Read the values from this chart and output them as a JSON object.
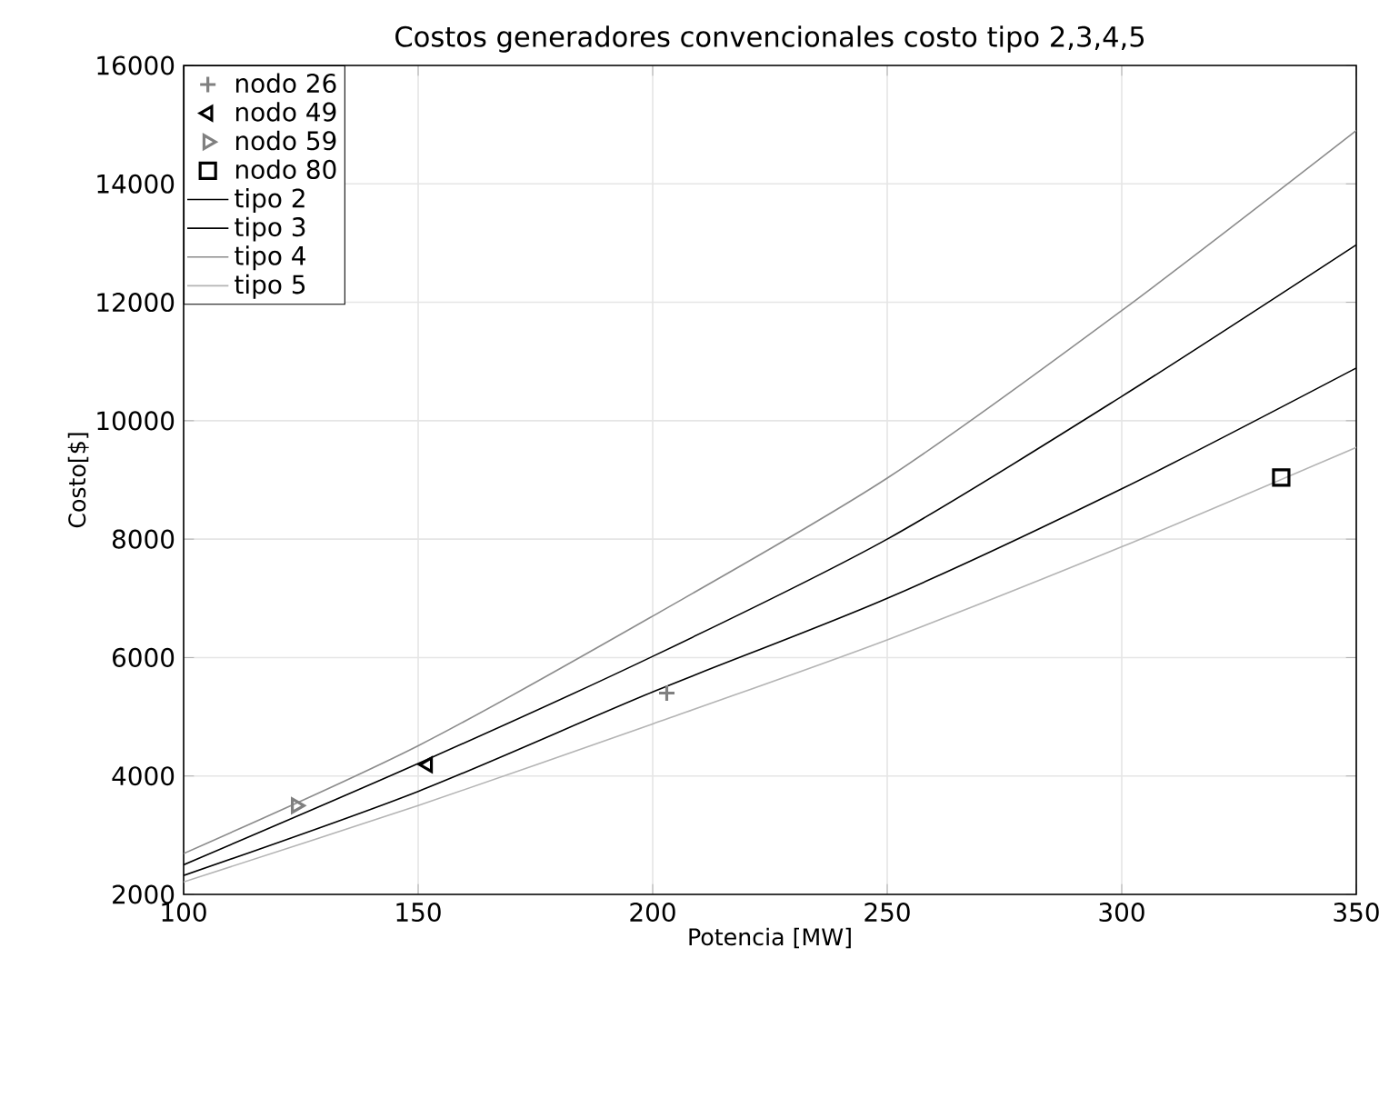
{
  "chart_data": {
    "type": "line",
    "title": "Costos generadores convencionales costo tipo 2,3,4,5",
    "xlabel": "Potencia [MW]",
    "ylabel": "Costo[$]",
    "xlim": [
      100,
      350
    ],
    "ylim": [
      2000,
      16000
    ],
    "xticks": [
      100,
      150,
      200,
      250,
      300,
      350
    ],
    "yticks": [
      2000,
      4000,
      6000,
      8000,
      10000,
      12000,
      14000,
      16000
    ],
    "grid": true,
    "legend": "top left",
    "series": [
      {
        "name": "nodo 26",
        "type": "scatter",
        "marker": "cross",
        "color": "#808080",
        "x": [
          203
        ],
        "values": [
          5400
        ]
      },
      {
        "name": "nodo 49",
        "type": "scatter",
        "marker": "triangle-left",
        "color": "#000000",
        "x": [
          152
        ],
        "values": [
          4190
        ]
      },
      {
        "name": "nodo 59",
        "type": "scatter",
        "marker": "triangle-right",
        "color": "#808080",
        "x": [
          124
        ],
        "values": [
          3500
        ]
      },
      {
        "name": "nodo 80",
        "type": "scatter",
        "marker": "square",
        "color": "#000000",
        "x": [
          334
        ],
        "values": [
          9040
        ]
      },
      {
        "name": "tipo 2",
        "marker": "none",
        "color": "#000000",
        "x": [
          100,
          150,
          200,
          250,
          300,
          350
        ],
        "values": [
          2320,
          3740,
          5420,
          7000,
          8850,
          10890
        ]
      },
      {
        "name": "tipo 3",
        "marker": "none",
        "color": "#000000",
        "x": [
          100,
          150,
          200,
          250,
          300,
          350
        ],
        "values": [
          2500,
          4210,
          6020,
          8000,
          10410,
          12970
        ]
      },
      {
        "name": "tipo 4",
        "marker": "none",
        "color": "#8c8c8c",
        "x": [
          100,
          150,
          200,
          250,
          300,
          350
        ],
        "values": [
          2690,
          4510,
          6700,
          9030,
          11860,
          14900
        ]
      },
      {
        "name": "tipo 5",
        "marker": "none",
        "color": "#b4b4b4",
        "x": [
          100,
          150,
          200,
          250,
          300,
          350
        ],
        "values": [
          2210,
          3500,
          4880,
          6300,
          7870,
          9550
        ]
      }
    ]
  }
}
